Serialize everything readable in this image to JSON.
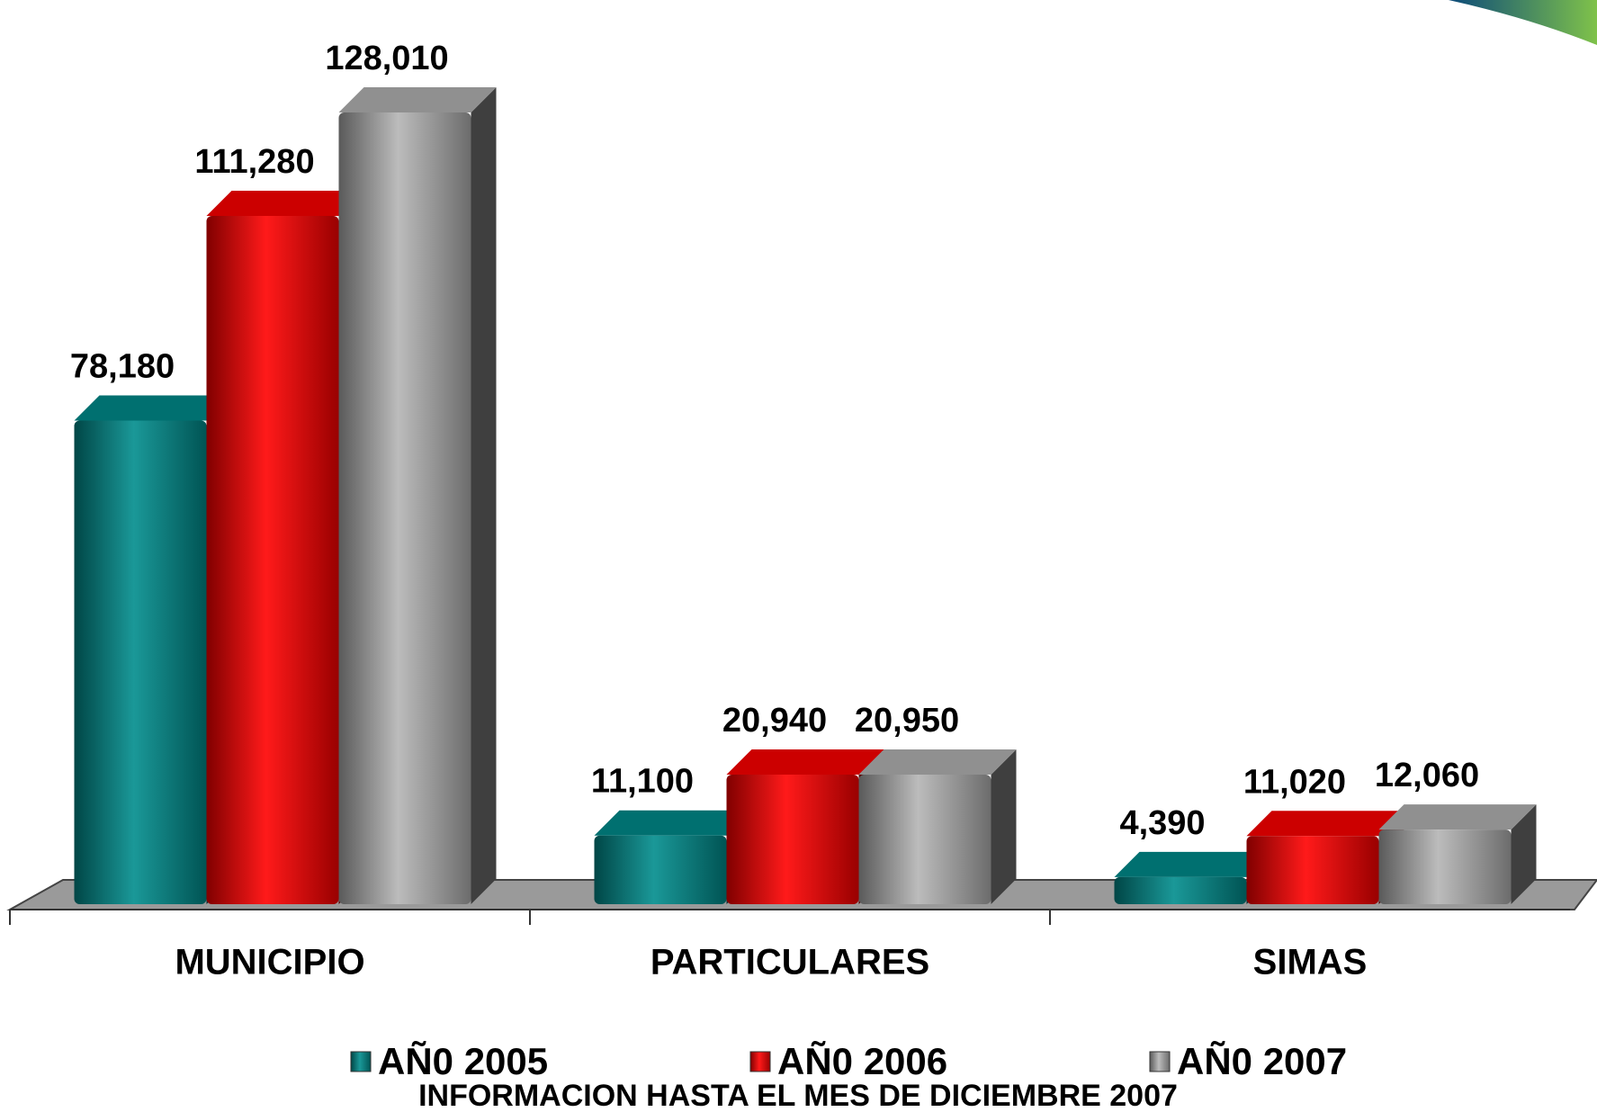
{
  "chart_data": {
    "type": "bar",
    "categories": [
      "MUNICIPIO",
      "PARTICULARES",
      "SIMAS"
    ],
    "series": [
      {
        "name": "AÑ0 2005",
        "color": "#008c8c",
        "values": [
          78180,
          11100,
          4390
        ],
        "value_labels": [
          "78,180",
          "11,100",
          "4,390"
        ]
      },
      {
        "name": "AÑ0 2006",
        "color": "#ff0000",
        "values": [
          111280,
          20940,
          11020
        ],
        "value_labels": [
          "111,280",
          "20,940",
          "11,020"
        ]
      },
      {
        "name": "AÑ0 2007",
        "color": "#b4b4b4",
        "values": [
          128010,
          20950,
          12060
        ],
        "value_labels": [
          "128,010",
          "20,950",
          "12,060"
        ]
      }
    ],
    "note": "INFORMACION HASTA EL MES DE DICIEMBRE 2007"
  }
}
